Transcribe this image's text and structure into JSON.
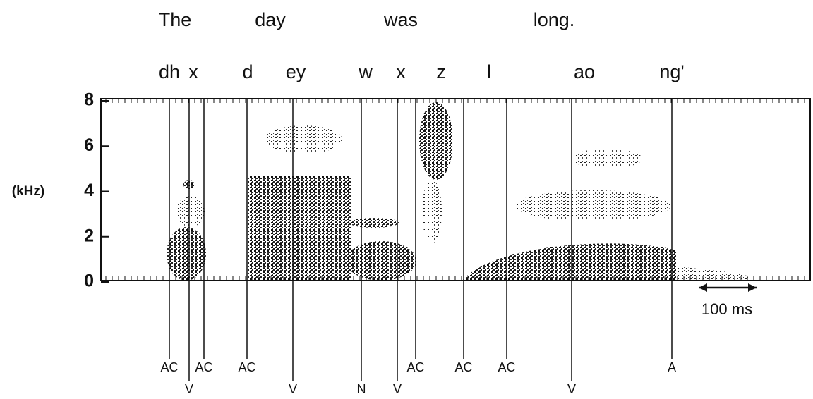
{
  "words": [
    "The",
    "day",
    "was",
    "long."
  ],
  "phonemes": [
    "dh",
    "x",
    "d",
    "ey",
    "w",
    "x",
    "z",
    "l",
    "ao",
    "ng'"
  ],
  "axis": {
    "label": "(kHz)",
    "ylim": [
      0,
      8
    ],
    "yticks": [
      0,
      2,
      4,
      6,
      8
    ]
  },
  "scale_bar": "100 ms",
  "landmarks": [
    "AC",
    "V",
    "AC",
    "AC",
    "V",
    "N",
    "V",
    "AC",
    "AC",
    "AC",
    "V",
    "A"
  ]
}
